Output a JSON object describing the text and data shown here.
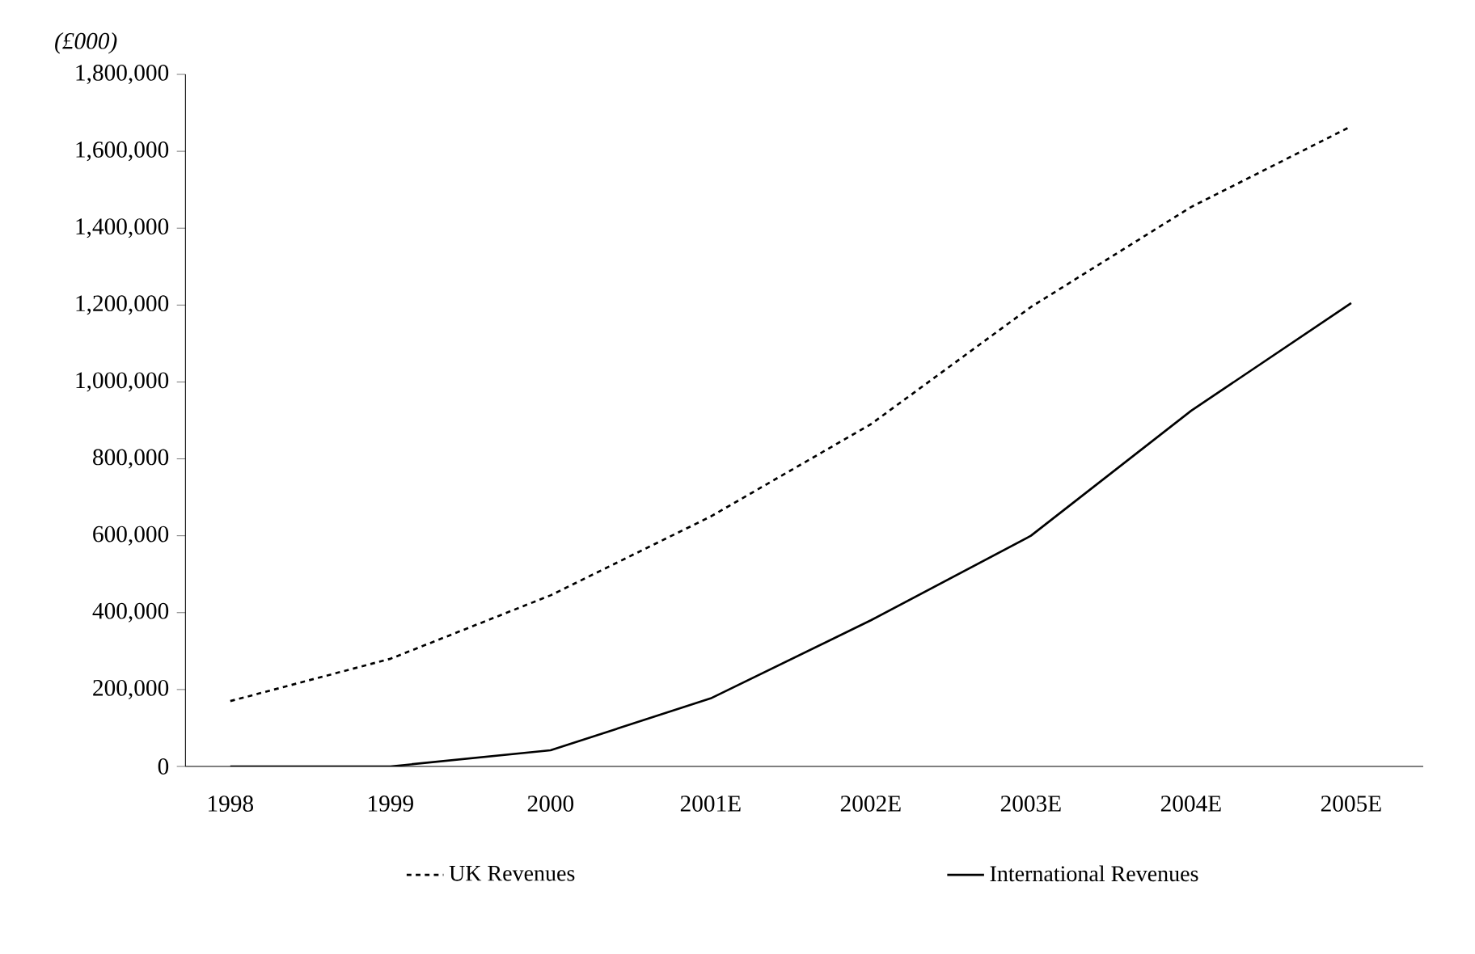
{
  "chart_data": {
    "type": "line",
    "ylabel": "(£000)",
    "categories": [
      "1998",
      "1999",
      "2000",
      "2001E",
      "2002E",
      "2003E",
      "2004E",
      "2005E"
    ],
    "series": [
      {
        "name": "UK Revenues",
        "color": "#000000",
        "line_style": "dotted",
        "values": [
          170000,
          280000,
          445000,
          650000,
          890000,
          1195000,
          1455000,
          1665000
        ]
      },
      {
        "name": "International Revenues",
        "color": "#000000",
        "line_style": "solid",
        "values": [
          0,
          0,
          42000,
          177000,
          380000,
          600000,
          925000,
          1205000
        ]
      }
    ],
    "ylim": [
      0,
      1800000
    ],
    "yticks": [
      {
        "value": 0,
        "label": "0"
      },
      {
        "value": 200000,
        "label": "200,000"
      },
      {
        "value": 400000,
        "label": "400,000"
      },
      {
        "value": 600000,
        "label": "600,000"
      },
      {
        "value": 800000,
        "label": "800,000"
      },
      {
        "value": 1000000,
        "label": "1,000,000"
      },
      {
        "value": 1200000,
        "label": "1,200,000"
      },
      {
        "value": 1400000,
        "label": "1,400,000"
      },
      {
        "value": 1600000,
        "label": "1,600,000"
      },
      {
        "value": 1800000,
        "label": "1,800,000"
      }
    ],
    "legend": "bottom",
    "grid": false,
    "marker": "none"
  }
}
